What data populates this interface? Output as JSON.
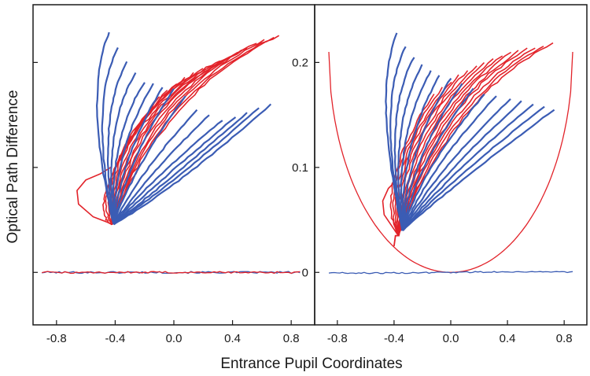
{
  "chart_data": [
    {
      "type": "line",
      "panel": "left",
      "xlim": [
        -0.96,
        0.96
      ],
      "ylim": [
        -0.05,
        0.255
      ],
      "x_ticks": [
        "-0.8",
        "-0.4",
        "0.0",
        "0.4",
        "0.8"
      ],
      "x_tick_values": [
        -0.8,
        -0.4,
        0.0,
        0.4,
        0.8
      ],
      "y_ticks": [],
      "colors": {
        "blue": "#3b5cb4",
        "red": "#e2232a"
      },
      "blue_fan": {
        "apex": [
          -0.41,
          0.046
        ],
        "tips": [
          [
            -0.44,
            0.229
          ],
          [
            -0.38,
            0.214
          ],
          [
            -0.32,
            0.201
          ],
          [
            -0.26,
            0.19
          ],
          [
            -0.2,
            0.181
          ],
          [
            -0.14,
            0.18
          ],
          [
            -0.08,
            0.176
          ],
          [
            0.0,
            0.175
          ],
          [
            0.08,
            0.168
          ],
          [
            0.16,
            0.155
          ],
          [
            0.24,
            0.15
          ],
          [
            0.33,
            0.145
          ],
          [
            0.42,
            0.148
          ],
          [
            0.5,
            0.152
          ],
          [
            0.58,
            0.157
          ],
          [
            0.66,
            0.16
          ]
        ],
        "bulge": [
          [
            -0.62,
            0.17
          ],
          [
            -0.58,
            0.16
          ],
          [
            -0.52,
            0.15
          ],
          [
            -0.48,
            0.14
          ],
          [
            -0.44,
            0.13
          ],
          [
            -0.4,
            0.12
          ],
          [
            -0.36,
            0.11
          ],
          [
            -0.32,
            0.105
          ],
          [
            -0.28,
            0.1
          ],
          [
            -0.24,
            0.095
          ],
          [
            -0.2,
            0.09
          ],
          [
            -0.16,
            0.088
          ],
          [
            -0.12,
            0.085
          ],
          [
            -0.08,
            0.082
          ],
          [
            -0.04,
            0.08
          ],
          [
            0.0,
            0.078
          ]
        ]
      },
      "red_fan": {
        "apex": [
          -0.42,
          0.046
        ],
        "tips": [
          [
            -0.1,
            0.168
          ],
          [
            -0.04,
            0.174
          ],
          [
            0.02,
            0.18
          ],
          [
            0.08,
            0.186
          ],
          [
            0.14,
            0.19
          ],
          [
            0.2,
            0.194
          ],
          [
            0.26,
            0.198
          ],
          [
            0.32,
            0.202
          ],
          [
            0.38,
            0.205
          ],
          [
            0.44,
            0.21
          ],
          [
            0.5,
            0.214
          ],
          [
            0.56,
            0.218
          ],
          [
            0.62,
            0.221
          ],
          [
            0.68,
            0.224
          ],
          [
            0.72,
            0.226
          ]
        ],
        "bulge": [
          [
            -0.63,
            0.06
          ],
          [
            -0.6,
            0.08
          ],
          [
            -0.56,
            0.1
          ],
          [
            -0.52,
            0.12
          ],
          [
            -0.48,
            0.13
          ],
          [
            -0.44,
            0.14
          ],
          [
            -0.4,
            0.145
          ],
          [
            -0.36,
            0.15
          ],
          [
            -0.32,
            0.155
          ],
          [
            -0.28,
            0.16
          ],
          [
            -0.24,
            0.162
          ],
          [
            -0.2,
            0.165
          ],
          [
            -0.16,
            0.168
          ],
          [
            -0.12,
            0.17
          ],
          [
            -0.08,
            0.172
          ]
        ],
        "loop": {
          "x": [
            -0.42,
            -0.55,
            -0.65,
            -0.66,
            -0.6,
            -0.5,
            -0.43
          ],
          "y": [
            0.046,
            0.053,
            0.065,
            0.078,
            0.088,
            0.094,
            0.1
          ]
        }
      },
      "baseline": {
        "x_range": [
          -0.9,
          0.86
        ],
        "y": 0.0,
        "note": "blue and red overlap near zero"
      }
    },
    {
      "type": "line",
      "panel": "right",
      "xlim": [
        -0.96,
        0.96
      ],
      "ylim": [
        -0.05,
        0.255
      ],
      "x_ticks": [
        "-0.8",
        "-0.4",
        "0.0",
        "0.4",
        "0.8"
      ],
      "x_tick_values": [
        -0.8,
        -0.4,
        0.0,
        0.4,
        0.8
      ],
      "y_ticks": [
        "0",
        "0.1",
        "0.2"
      ],
      "y_tick_values": [
        0.0,
        0.1,
        0.2
      ],
      "colors": {
        "blue": "#3b5cb4",
        "red": "#e2232a"
      },
      "blue_fan": {
        "apex": [
          -0.34,
          0.04
        ],
        "tips": [
          [
            -0.38,
            0.228
          ],
          [
            -0.32,
            0.215
          ],
          [
            -0.26,
            0.205
          ],
          [
            -0.2,
            0.198
          ],
          [
            -0.14,
            0.192
          ],
          [
            -0.08,
            0.188
          ],
          [
            0.0,
            0.185
          ],
          [
            0.08,
            0.18
          ],
          [
            0.16,
            0.175
          ],
          [
            0.24,
            0.17
          ],
          [
            0.32,
            0.168
          ],
          [
            0.42,
            0.165
          ],
          [
            0.5,
            0.163
          ],
          [
            0.58,
            0.16
          ],
          [
            0.66,
            0.158
          ],
          [
            0.73,
            0.155
          ]
        ],
        "bulge": [
          [
            -0.55,
            0.17
          ],
          [
            -0.52,
            0.16
          ],
          [
            -0.48,
            0.15
          ],
          [
            -0.44,
            0.14
          ],
          [
            -0.4,
            0.13
          ],
          [
            -0.36,
            0.12
          ],
          [
            -0.32,
            0.115
          ],
          [
            -0.28,
            0.11
          ],
          [
            -0.24,
            0.105
          ],
          [
            -0.2,
            0.1
          ],
          [
            -0.16,
            0.098
          ],
          [
            -0.12,
            0.095
          ],
          [
            -0.08,
            0.092
          ],
          [
            -0.04,
            0.09
          ],
          [
            0.0,
            0.088
          ],
          [
            0.04,
            0.086
          ]
        ]
      },
      "red_fan": {
        "apex": [
          -0.37,
          0.035
        ],
        "tips": [
          [
            -0.12,
            0.17
          ],
          [
            -0.06,
            0.176
          ],
          [
            0.0,
            0.182
          ],
          [
            0.06,
            0.188
          ],
          [
            0.12,
            0.192
          ],
          [
            0.18,
            0.196
          ],
          [
            0.24,
            0.2
          ],
          [
            0.3,
            0.203
          ],
          [
            0.36,
            0.206
          ],
          [
            0.42,
            0.209
          ],
          [
            0.48,
            0.211
          ],
          [
            0.54,
            0.213
          ],
          [
            0.6,
            0.214
          ],
          [
            0.66,
            0.216
          ],
          [
            0.72,
            0.218
          ]
        ],
        "bulge": [
          [
            -0.55,
            0.08
          ],
          [
            -0.52,
            0.09
          ],
          [
            -0.48,
            0.1
          ],
          [
            -0.44,
            0.11
          ],
          [
            -0.4,
            0.12
          ],
          [
            -0.36,
            0.13
          ],
          [
            -0.32,
            0.135
          ],
          [
            -0.28,
            0.14
          ],
          [
            -0.24,
            0.145
          ],
          [
            -0.2,
            0.15
          ],
          [
            -0.16,
            0.155
          ],
          [
            -0.12,
            0.16
          ],
          [
            -0.08,
            0.162
          ],
          [
            -0.04,
            0.165
          ],
          [
            0.0,
            0.168
          ]
        ],
        "loop": {
          "x": [
            -0.37,
            -0.42,
            -0.47,
            -0.48,
            -0.44,
            -0.38
          ],
          "y": [
            0.035,
            0.045,
            0.055,
            0.068,
            0.08,
            0.088
          ]
        },
        "tail": {
          "x": [
            -0.37,
            -0.39,
            -0.4
          ],
          "y": [
            0.035,
            0.035,
            0.025
          ]
        }
      },
      "bowl": {
        "x_range": [
          -0.86,
          0.86
        ],
        "y_min": 0.0,
        "y_edge": 0.21,
        "color": "#e2232a"
      },
      "baseline": {
        "x_range": [
          -0.86,
          0.86
        ],
        "y": 0.0,
        "color": "#3b5cb4"
      }
    }
  ],
  "xlabel": "Entrance Pupil Coordinates",
  "ylabel": "Optical Path Difference"
}
